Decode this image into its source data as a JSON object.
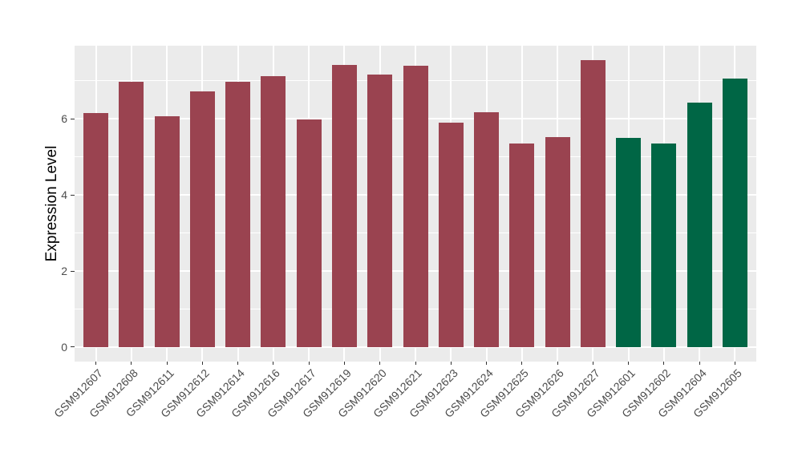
{
  "chart_data": {
    "type": "bar",
    "title": "",
    "xlabel": "",
    "ylabel": "Expression Level",
    "ylim": [
      -0.38,
      7.92
    ],
    "yticks": [
      0,
      2,
      4,
      6
    ],
    "minor_yticks": [
      1,
      3,
      5,
      7
    ],
    "grid": true,
    "legend_position": "none",
    "categories": [
      "GSM912607",
      "GSM912608",
      "GSM912611",
      "GSM912612",
      "GSM912614",
      "GSM912616",
      "GSM912617",
      "GSM912619",
      "GSM912620",
      "GSM912621",
      "GSM912623",
      "GSM912624",
      "GSM912625",
      "GSM912626",
      "GSM912627",
      "GSM912601",
      "GSM912602",
      "GSM912604",
      "GSM912605"
    ],
    "series": [
      {
        "name": "Expression Level",
        "values": [
          6.15,
          6.97,
          6.06,
          6.71,
          6.97,
          7.13,
          5.98,
          7.42,
          7.16,
          7.4,
          5.89,
          6.17,
          5.35,
          5.51,
          7.54,
          5.49,
          5.36,
          6.43,
          7.05
        ]
      }
    ],
    "bar_colors": [
      "#9A4350",
      "#9A4350",
      "#9A4350",
      "#9A4350",
      "#9A4350",
      "#9A4350",
      "#9A4350",
      "#9A4350",
      "#9A4350",
      "#9A4350",
      "#9A4350",
      "#9A4350",
      "#9A4350",
      "#9A4350",
      "#9A4350",
      "#006645",
      "#006645",
      "#006645",
      "#006645"
    ],
    "color_groups": [
      {
        "color": "#9A4350",
        "count": 15
      },
      {
        "color": "#006645",
        "count": 4
      }
    ],
    "colors": {
      "panel_background": "#EBEBEB",
      "gridline": "#FFFFFF",
      "tick_text": "#4D4D4D",
      "axis_title_text": "#000000",
      "tick_mark": "#333333",
      "figure_background": "#FFFFFF"
    }
  }
}
